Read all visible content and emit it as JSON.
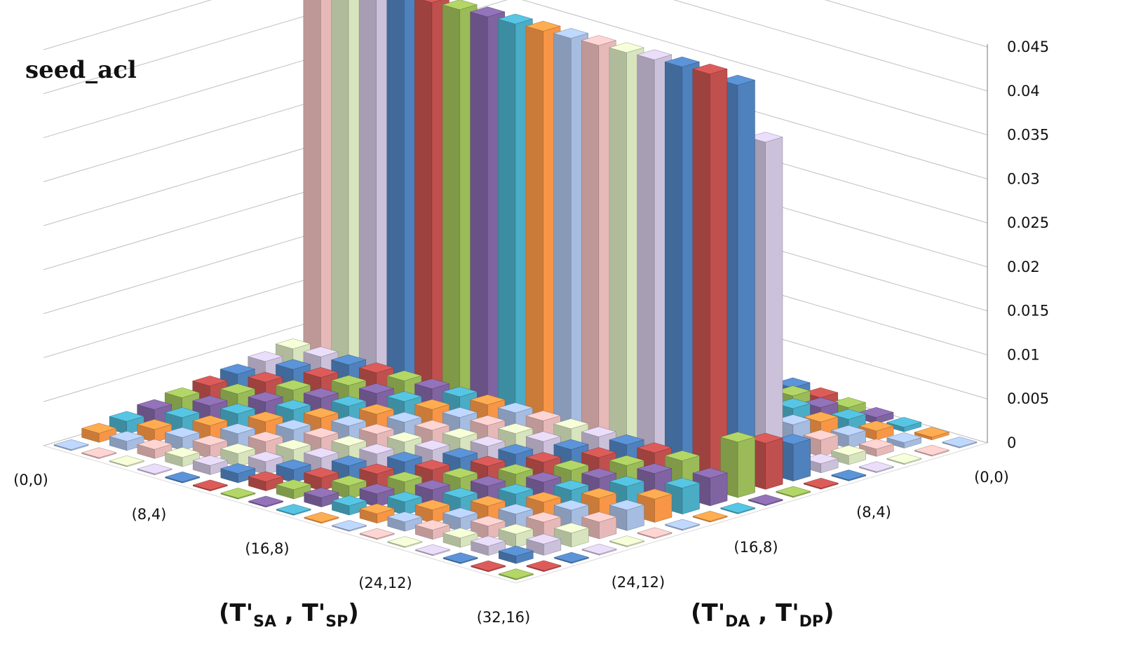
{
  "chart_data": {
    "type": "bar",
    "variant": "3d-column-grid",
    "title": "seed_acl",
    "x_axis": {
      "label_main": "(T'",
      "label_sub_1": "SA",
      "label_mid": " , T'",
      "label_sub_2": "SP",
      "label_end": ")",
      "ticks": [
        "(0,0)",
        "(8,4)",
        "(16,8)",
        "(24,12)",
        "(32,16)"
      ]
    },
    "y_axis": {
      "label_main": "(T'",
      "label_sub_1": "DA",
      "label_mid": " , T'",
      "label_sub_2": "DP",
      "label_end": ")",
      "ticks": [
        "(0,0)",
        "(8,4)",
        "(16,8)",
        "(24,12)"
      ]
    },
    "z_axis": {
      "ticks": [
        "0",
        "0.005",
        "0.01",
        "0.015",
        "0.02",
        "0.025",
        "0.03",
        "0.035",
        "0.04",
        "0.045"
      ],
      "range": [
        0,
        0.045
      ]
    },
    "grid": true,
    "series_colors": [
      "#4f81bd",
      "#c0504d",
      "#9bbb59",
      "#8064a2",
      "#4bacc6",
      "#f79646",
      "#a6bce0",
      "#e6b9b8",
      "#d7e4bd",
      "#ccc1da"
    ],
    "rows": [
      {
        "values": [
          0.004,
          0.0036,
          0.0033,
          0.003,
          0.0027,
          0.0024,
          0.0021,
          0.0019,
          0.0017,
          0.0015,
          0.0013,
          0.0011,
          0.0009,
          0.0007,
          0.0005,
          0.0003,
          0
        ]
      },
      {
        "values": [
          0.008,
          0.0072,
          0.0066,
          0.006,
          0.0054,
          0.0048,
          0.0042,
          0.0038,
          0.0034,
          0.003,
          0.0026,
          0.0022,
          0.0018,
          0.0014,
          0.001,
          0.0006,
          0
        ]
      },
      {
        "values": [
          0.012,
          0.011,
          0.01,
          0.009,
          0.008,
          0.0072,
          0.0064,
          0.0056,
          0.005,
          0.0044,
          0.0038,
          0.0032,
          0.0026,
          0.002,
          0.0014,
          0.0008,
          0
        ]
      },
      {
        "values": [
          0.016,
          0.015,
          0.014,
          0.0125,
          0.011,
          0.01,
          0.009,
          0.008,
          0.007,
          0.006,
          0.005,
          0.0042,
          0.0034,
          0.0026,
          0.0018,
          0.001,
          0
        ]
      },
      {
        "values": [
          0.02,
          0.019,
          0.0175,
          0.016,
          0.0145,
          0.013,
          0.0115,
          0.01,
          0.0088,
          0.0076,
          0.0064,
          0.0052,
          0.004,
          0.003,
          0.002,
          0.001,
          0
        ]
      },
      {
        "values": [
          0.036,
          0.036,
          0.036,
          0.036,
          0.036,
          0.036,
          0.036,
          0.036,
          0.036,
          0.036,
          0.036,
          0.036,
          0.036,
          0.036,
          0.036,
          0.004,
          0
        ]
      },
      {
        "values": [
          0.043,
          0.043,
          0.043,
          0.043,
          0.043,
          0.043,
          0.043,
          0.043,
          0.043,
          0.043,
          0.043,
          0.043,
          0.043,
          0.043,
          0.043,
          0.005,
          0
        ]
      },
      {
        "values": [
          0.045,
          0.045,
          0.045,
          0.045,
          0.045,
          0.045,
          0.045,
          0.045,
          0.045,
          0.045,
          0.045,
          0.045,
          0.045,
          0.045,
          0.045,
          0.006,
          0
        ]
      },
      {
        "values": [
          0.004,
          0.004,
          0.004,
          0.004,
          0.004,
          0.004,
          0.004,
          0.004,
          0.004,
          0.004,
          0.004,
          0.004,
          0.004,
          0.004,
          0.004,
          0.003,
          0
        ]
      },
      {
        "values": [
          0.0035,
          0.0035,
          0.0035,
          0.0035,
          0.0035,
          0.0035,
          0.0035,
          0.0035,
          0.0035,
          0.0035,
          0.0035,
          0.0035,
          0.0035,
          0.0035,
          0.0035,
          0.0028,
          0
        ]
      },
      {
        "values": [
          0.003,
          0.003,
          0.003,
          0.003,
          0.003,
          0.003,
          0.003,
          0.003,
          0.003,
          0.003,
          0.003,
          0.003,
          0.003,
          0.003,
          0.003,
          0.0025,
          0
        ]
      },
      {
        "values": [
          0.0026,
          0.0026,
          0.0026,
          0.0026,
          0.0026,
          0.0026,
          0.0026,
          0.0026,
          0.0026,
          0.0026,
          0.0026,
          0.0026,
          0.0026,
          0.0026,
          0.0026,
          0.0022,
          0
        ]
      },
      {
        "values": [
          0.0022,
          0.0022,
          0.0022,
          0.0022,
          0.0022,
          0.0022,
          0.0022,
          0.0022,
          0.0022,
          0.0022,
          0.0022,
          0.0022,
          0.0022,
          0.0022,
          0.0022,
          0.0018,
          0
        ]
      },
      {
        "values": [
          0.0018,
          0.0018,
          0.0018,
          0.0018,
          0.0018,
          0.0018,
          0.0018,
          0.0018,
          0.0018,
          0.0018,
          0.0018,
          0.0018,
          0.0018,
          0.0018,
          0.0018,
          0.0015,
          0
        ]
      },
      {
        "values": [
          0.0014,
          0.0014,
          0.0014,
          0.0014,
          0.0014,
          0.0014,
          0.0014,
          0.0014,
          0.0014,
          0.0014,
          0.0014,
          0.0014,
          0.0014,
          0.0014,
          0.0014,
          0.0012,
          0
        ]
      },
      {
        "values": [
          0.001,
          0.001,
          0.001,
          0.001,
          0.001,
          0.001,
          0.001,
          0.001,
          0.001,
          0.001,
          0.001,
          0.001,
          0.001,
          0.001,
          0.001,
          0.0008,
          0
        ]
      },
      {
        "values": [
          0,
          0,
          0,
          0,
          0,
          0,
          0,
          0,
          0,
          0,
          0,
          0,
          0,
          0,
          0,
          0,
          0
        ]
      }
    ]
  }
}
